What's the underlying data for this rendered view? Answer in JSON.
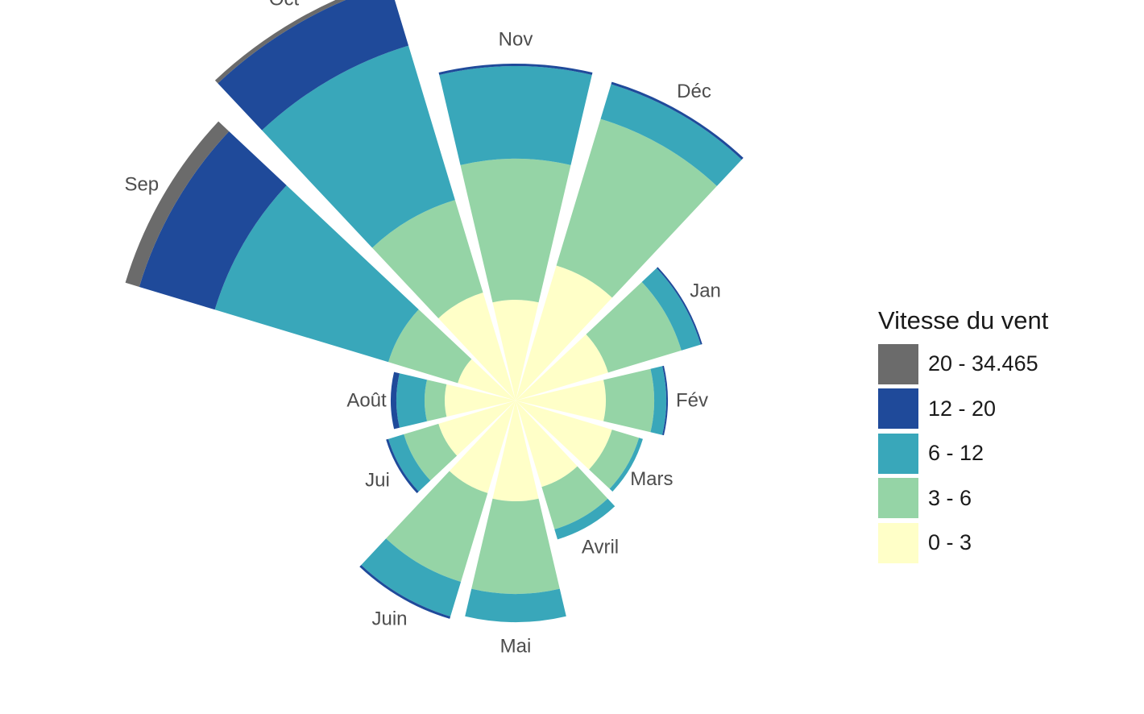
{
  "chart_data": {
    "type": "polar-stacked-bar",
    "title": "",
    "legend": {
      "title": "Vitesse du vent",
      "placement": "right",
      "entries": [
        {
          "label": "20 - 34.465",
          "color": "#6b6b6b"
        },
        {
          "label": "12 - 20",
          "color": "#1f4a9a"
        },
        {
          "label": "6 - 12",
          "color": "#39a7ba"
        },
        {
          "label": "3 - 6",
          "color": "#95d4a6"
        },
        {
          "label": "0 - 3",
          "color": "#ffffc8"
        }
      ]
    },
    "stack_order": [
      "0 - 3",
      "3 - 6",
      "6 - 12",
      "12 - 20",
      "20 - 34.465"
    ],
    "months": [
      {
        "label": "Jan",
        "values": [
          120,
          95,
          25,
          2,
          0
        ]
      },
      {
        "label": "Fév",
        "values": [
          112,
          60,
          15,
          2,
          0
        ]
      },
      {
        "label": "Mars",
        "values": [
          125,
          35,
          5,
          0,
          0
        ]
      },
      {
        "label": "Avril",
        "values": [
          112,
          55,
          13,
          0,
          0
        ]
      },
      {
        "label": "Mai",
        "values": [
          125,
          115,
          35,
          0,
          0
        ]
      },
      {
        "label": "Juin",
        "values": [
          120,
          115,
          45,
          3,
          0
        ]
      },
      {
        "label": "Jui",
        "values": [
          100,
          45,
          20,
          3,
          0
        ]
      },
      {
        "label": "Août",
        "values": [
          88,
          25,
          35,
          7,
          0
        ]
      },
      {
        "label": "Sep",
        "values": [
          75,
          90,
          225,
          98,
          18
        ]
      },
      {
        "label": "Oct",
        "values": [
          140,
          120,
          200,
          80,
          5
        ]
      },
      {
        "label": "Nov",
        "values": [
          125,
          175,
          115,
          3,
          0
        ]
      },
      {
        "label": "Déc",
        "values": [
          175,
          190,
          45,
          3,
          0
        ]
      }
    ]
  }
}
